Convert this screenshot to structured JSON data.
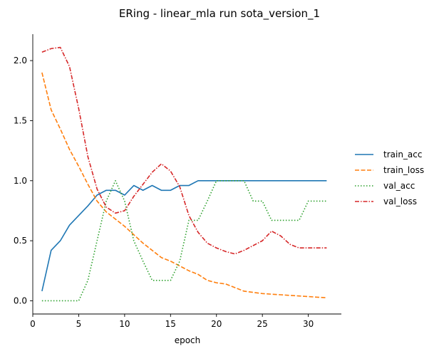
{
  "chart_data": {
    "type": "line",
    "title": "ERing - linear_mla run sota_version_1",
    "xlabel": "epoch",
    "ylabel": "",
    "xlim": [
      0.0,
      33.6
    ],
    "ylim": [
      -0.11,
      2.22
    ],
    "xticks": [
      0,
      5,
      10,
      15,
      20,
      25,
      30
    ],
    "yticks": [
      0.0,
      0.5,
      1.0,
      1.5,
      2.0
    ],
    "xtick_labels": [
      "0",
      "5",
      "10",
      "15",
      "20",
      "25",
      "30"
    ],
    "ytick_labels": [
      "0.0",
      "0.5",
      "1.0",
      "1.5",
      "2.0"
    ],
    "grid": false,
    "legend_position": "right",
    "x": [
      1,
      2,
      3,
      4,
      5,
      6,
      7,
      8,
      9,
      10,
      11,
      12,
      13,
      14,
      15,
      16,
      17,
      18,
      19,
      20,
      21,
      22,
      23,
      24,
      25,
      26,
      27,
      28,
      29,
      30,
      31,
      32
    ],
    "series": [
      {
        "name": "train_acc",
        "color": "#1f77b4",
        "dash": "solid",
        "values": [
          0.08,
          0.42,
          0.5,
          0.63,
          0.71,
          0.79,
          0.88,
          0.92,
          0.92,
          0.88,
          0.96,
          0.92,
          0.96,
          0.92,
          0.92,
          0.96,
          0.96,
          1.0,
          1.0,
          1.0,
          1.0,
          1.0,
          1.0,
          1.0,
          1.0,
          1.0,
          1.0,
          1.0,
          1.0,
          1.0,
          1.0,
          1.0
        ]
      },
      {
        "name": "train_loss",
        "color": "#ff7f0e",
        "dash": "dashed",
        "values": [
          1.9,
          1.59,
          1.43,
          1.26,
          1.12,
          0.97,
          0.83,
          0.74,
          0.68,
          0.62,
          0.55,
          0.48,
          0.42,
          0.36,
          0.33,
          0.29,
          0.25,
          0.22,
          0.17,
          0.15,
          0.14,
          0.11,
          0.08,
          0.07,
          0.06,
          0.055,
          0.05,
          0.045,
          0.04,
          0.035,
          0.03,
          0.025
        ]
      },
      {
        "name": "val_acc",
        "color": "#2ca02c",
        "dash": "dotted",
        "values": [
          0.0,
          0.0,
          0.0,
          0.0,
          0.0,
          0.17,
          0.5,
          0.83,
          1.0,
          0.83,
          0.5,
          0.33,
          0.17,
          0.17,
          0.17,
          0.33,
          0.67,
          0.67,
          0.83,
          1.0,
          1.0,
          1.0,
          1.0,
          0.83,
          0.83,
          0.67,
          0.67,
          0.67,
          0.67,
          0.83,
          0.83,
          0.83
        ]
      },
      {
        "name": "val_loss",
        "color": "#d62728",
        "dash": "dashdot",
        "values": [
          2.07,
          2.1,
          2.11,
          1.95,
          1.6,
          1.2,
          0.93,
          0.78,
          0.73,
          0.75,
          0.87,
          0.97,
          1.07,
          1.14,
          1.08,
          0.95,
          0.71,
          0.57,
          0.48,
          0.44,
          0.41,
          0.39,
          0.42,
          0.46,
          0.5,
          0.58,
          0.54,
          0.47,
          0.44,
          0.44,
          0.44,
          0.44
        ]
      }
    ]
  }
}
